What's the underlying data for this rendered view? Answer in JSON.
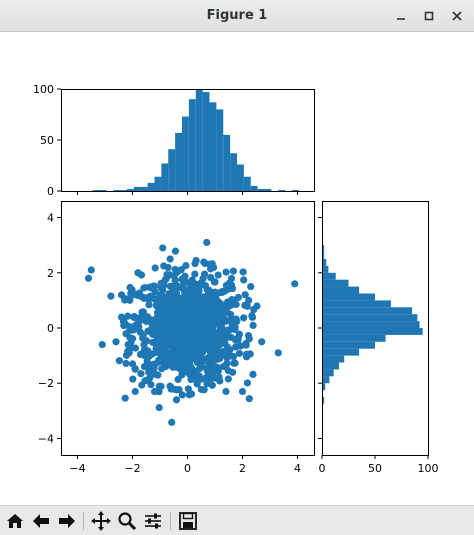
{
  "window": {
    "title": "Figure 1"
  },
  "titlebar_controls": [
    "minimize",
    "maximize",
    "close"
  ],
  "toolbar": {
    "buttons": [
      "home-icon",
      "back-icon",
      "forward-icon",
      "pan-icon",
      "zoom-icon",
      "configure-subplots-icon",
      "save-icon"
    ]
  },
  "colors": {
    "marker": "#1f77b4"
  },
  "chart_data": [
    {
      "type": "bar",
      "title": "",
      "xlabel": "",
      "ylabel": "",
      "bin_edges": [
        -4.2,
        -3.95,
        -3.7,
        -3.45,
        -3.2,
        -2.95,
        -2.7,
        -2.45,
        -2.2,
        -1.95,
        -1.7,
        -1.45,
        -1.2,
        -0.95,
        -0.7,
        -0.45,
        -0.2,
        0.05,
        0.3,
        0.55,
        0.8,
        1.05,
        1.3,
        1.55,
        1.8,
        2.05,
        2.3,
        2.55,
        2.8,
        3.05,
        3.3,
        3.55,
        3.8,
        4.05
      ],
      "values": [
        0,
        0,
        0,
        1,
        1,
        0,
        1,
        1,
        2,
        4,
        4,
        8,
        14,
        27,
        41,
        57,
        73,
        90,
        100,
        97,
        87,
        80,
        55,
        37,
        26,
        14,
        5,
        2,
        2,
        0,
        1,
        0,
        1
      ],
      "ylim": [
        0,
        100
      ],
      "yticks": [
        "0",
        "50",
        "100"
      ]
    },
    {
      "type": "scatter",
      "title": "",
      "xlabel": "",
      "ylabel": "",
      "xlim": [
        -4.6,
        4.6
      ],
      "ylim": [
        -4.6,
        4.6
      ],
      "xticks": [
        "−4",
        "−2",
        "0",
        "2",
        "4"
      ],
      "yticks": [
        "−4",
        "−2",
        "0",
        "2",
        "4"
      ],
      "points": [
        [
          -3.5,
          2.1
        ],
        [
          -3.6,
          1.8
        ],
        [
          3.9,
          1.6
        ],
        [
          -2.6,
          -0.5
        ],
        [
          -3.1,
          -0.6
        ],
        [
          3.3,
          -0.9
        ],
        [
          -2.0,
          -1.3
        ],
        [
          -1.9,
          -2.3
        ],
        [
          -1.2,
          -2.3
        ],
        [
          -0.4,
          -2.6
        ],
        [
          1.4,
          -2.3
        ],
        [
          2.0,
          -2.3
        ],
        [
          2.7,
          -0.5
        ],
        [
          -0.9,
          2.9
        ],
        [
          0.7,
          3.1
        ],
        [
          -2.1,
          1.0
        ],
        [
          -2.4,
          1.2
        ],
        [
          -1.8,
          2.0
        ],
        [
          2.3,
          1.5
        ]
      ],
      "cloud": {
        "n_points": 1000,
        "mean": [
          0,
          0
        ],
        "std": [
          1,
          1
        ]
      }
    },
    {
      "type": "bar",
      "orientation": "horizontal",
      "title": "",
      "xlabel": "",
      "ylabel": "",
      "bin_edges": [
        -4.0,
        -3.75,
        -3.5,
        -3.25,
        -3.0,
        -2.75,
        -2.5,
        -2.25,
        -2.0,
        -1.75,
        -1.5,
        -1.25,
        -1.0,
        -0.75,
        -0.5,
        -0.25,
        0.0,
        0.25,
        0.5,
        0.75,
        1.0,
        1.25,
        1.5,
        1.75,
        2.0,
        2.25,
        2.5,
        2.75,
        3.0,
        3.25
      ],
      "values": [
        0,
        0,
        1,
        1,
        1,
        2,
        1,
        3,
        7,
        11,
        16,
        21,
        35,
        50,
        60,
        95,
        92,
        90,
        85,
        65,
        50,
        35,
        25,
        13,
        6,
        4,
        2,
        2,
        1
      ],
      "xlim": [
        0,
        100
      ],
      "xticks": [
        "0",
        "50",
        "100"
      ]
    }
  ]
}
